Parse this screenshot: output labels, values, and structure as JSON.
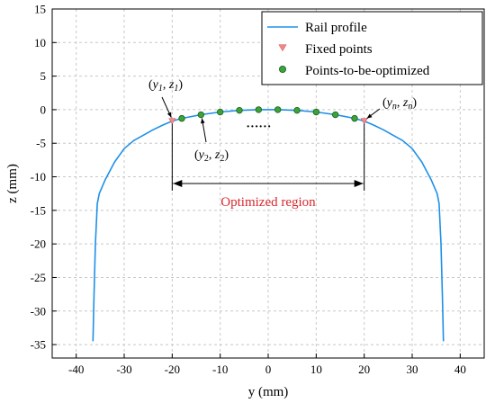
{
  "chart_data": {
    "type": "line",
    "xlabel": "y (mm)",
    "ylabel": "z (mm)",
    "xlim": [
      -45,
      45
    ],
    "ylim": [
      -37,
      15
    ],
    "x_ticks": [
      -40,
      -30,
      -20,
      -10,
      0,
      10,
      20,
      30,
      40
    ],
    "y_ticks": [
      15,
      10,
      5,
      0,
      -5,
      -10,
      -15,
      -20,
      -25,
      -30,
      -35
    ],
    "grid": true,
    "legend_position": "top-right",
    "colors": {
      "rail": "#1e90e8",
      "fixed": "#f28686",
      "opt_fill": "#3aa43a",
      "opt_edge": "#1d5f1d",
      "region": "#d8272d"
    },
    "series": [
      {
        "name": "Rail profile",
        "kind": "line",
        "points": [
          [
            -36.5,
            -34.5
          ],
          [
            -36.3,
            -28
          ],
          [
            -36.0,
            -20
          ],
          [
            -35.6,
            -14
          ],
          [
            -35.2,
            -12.5
          ],
          [
            -34.0,
            -10.5
          ],
          [
            -32.0,
            -7.8
          ],
          [
            -30.0,
            -5.8
          ],
          [
            -28.0,
            -4.6
          ],
          [
            -26.0,
            -3.8
          ],
          [
            -24.0,
            -3.0
          ],
          [
            -22.0,
            -2.3
          ],
          [
            -20.0,
            -1.7
          ],
          [
            -18.0,
            -1.3
          ],
          [
            -14.0,
            -0.75
          ],
          [
            -10.0,
            -0.35
          ],
          [
            -6.0,
            -0.1
          ],
          [
            -2.0,
            0.0
          ],
          [
            2.0,
            0.0
          ],
          [
            6.0,
            -0.1
          ],
          [
            10.0,
            -0.35
          ],
          [
            14.0,
            -0.75
          ],
          [
            18.0,
            -1.3
          ],
          [
            20.0,
            -1.7
          ],
          [
            22.0,
            -2.3
          ],
          [
            24.0,
            -3.0
          ],
          [
            26.0,
            -3.8
          ],
          [
            28.0,
            -4.6
          ],
          [
            30.0,
            -5.8
          ],
          [
            32.0,
            -7.8
          ],
          [
            34.0,
            -10.5
          ],
          [
            35.2,
            -12.5
          ],
          [
            35.6,
            -14
          ],
          [
            36.0,
            -20
          ],
          [
            36.3,
            -28
          ],
          [
            36.5,
            -34.5
          ]
        ]
      },
      {
        "name": "Fixed points",
        "kind": "marker",
        "points": [
          [
            -20,
            -1.7
          ],
          [
            20,
            -1.7
          ]
        ]
      },
      {
        "name": "Points-to-be-optimized",
        "kind": "marker",
        "points": [
          [
            -18,
            -1.3
          ],
          [
            -14,
            -0.75
          ],
          [
            -10,
            -0.35
          ],
          [
            -6,
            -0.1
          ],
          [
            -2,
            0.0
          ],
          [
            2,
            0.0
          ],
          [
            6,
            -0.1
          ],
          [
            10,
            -0.35
          ],
          [
            14,
            -0.75
          ],
          [
            18,
            -1.3
          ]
        ]
      }
    ],
    "annotations": {
      "p1_prefix": "(",
      "p1_var1": "y",
      "p1_sub1": "1",
      "p1_comma": ", ",
      "p1_var2": "z",
      "p1_sub2": "1",
      "p1_suffix": ")",
      "p2_prefix": "(",
      "p2_var1": "y",
      "p2_sub1": "2",
      "p2_comma": ", ",
      "p2_var2": "z",
      "p2_sub2": "2",
      "p2_suffix": ")",
      "pn_prefix": "(",
      "pn_var1": "y",
      "pn_sub1": "n",
      "pn_comma": ", ",
      "pn_var2": "z",
      "pn_sub2": "n",
      "pn_suffix": ")",
      "dots": "……",
      "region_label": "Optimized region",
      "region_range": [
        -20,
        20
      ]
    }
  }
}
